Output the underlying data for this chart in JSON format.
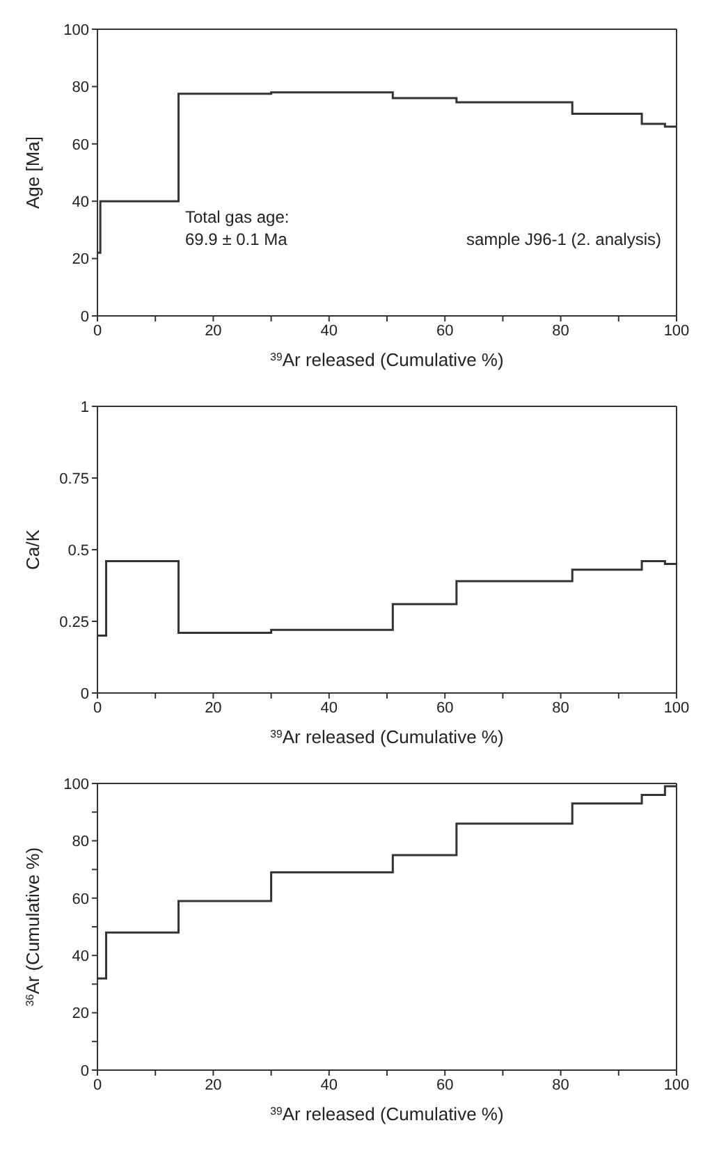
{
  "chart_data": [
    {
      "type": "step",
      "xlabel": "$^{39}$Ar released (Cumulative %)",
      "ylabel": "Age [Ma]",
      "x": [
        0,
        0.5,
        14,
        30,
        51,
        62,
        82,
        94,
        98,
        100
      ],
      "series": [
        {
          "color": "#333333",
          "values": [
            22,
            40,
            77.5,
            78,
            76,
            74.5,
            70.5,
            67,
            66,
            66
          ]
        }
      ],
      "xlim": [
        0,
        100
      ],
      "xticks": [
        0,
        {
          "value": 10,
          "label": null
        },
        20,
        {
          "value": 30,
          "label": null
        },
        40,
        {
          "value": 50,
          "label": null
        },
        60,
        {
          "value": 70,
          "label": null
        },
        80,
        {
          "value": 90,
          "label": null
        },
        100
      ],
      "ylim": [
        0,
        100
      ],
      "yticks": [
        0,
        20,
        40,
        60,
        80,
        100
      ],
      "annotations": [
        "Total gas age:\n69.9 ± 0.1 Ma",
        "sample J96-1 (2. analysis)"
      ]
    },
    {
      "type": "step",
      "xlabel": "$^{39}$Ar released (Cumulative %)",
      "ylabel": "Ca/K",
      "x": [
        0,
        1.5,
        14,
        30,
        51,
        62,
        82,
        94,
        98,
        100
      ],
      "series": [
        {
          "color": "#333333",
          "values": [
            0.2,
            0.46,
            0.21,
            0.22,
            0.31,
            0.39,
            0.43,
            0.46,
            0.45,
            0.45
          ]
        }
      ],
      "xlim": [
        0,
        100
      ],
      "xticks": [
        0,
        {
          "value": 10,
          "label": null
        },
        20,
        {
          "value": 30,
          "label": null
        },
        40,
        {
          "value": 50,
          "label": null
        },
        60,
        {
          "value": 70,
          "label": null
        },
        80,
        {
          "value": 90,
          "label": null
        },
        100
      ],
      "ylim": [
        0,
        1
      ],
      "yticks": [
        0,
        0.25,
        0.5,
        0.75,
        1
      ]
    },
    {
      "type": "step",
      "xlabel": "$^{39}$Ar released (Cumulative %)",
      "ylabel": "$^{36}$Ar (Cumulative %)",
      "x": [
        0,
        1.5,
        14,
        30,
        51,
        62,
        82,
        94,
        98,
        100
      ],
      "series": [
        {
          "color": "#333333",
          "values": [
            32,
            48,
            59,
            69,
            75,
            86,
            93,
            96,
            99,
            99
          ]
        }
      ],
      "xlim": [
        0,
        100
      ],
      "xticks": [
        0,
        {
          "value": 10,
          "label": null
        },
        20,
        {
          "value": 30,
          "label": null
        },
        40,
        {
          "value": 50,
          "label": null
        },
        60,
        {
          "value": 70,
          "label": null
        },
        80,
        {
          "value": 90,
          "label": null
        },
        100
      ],
      "ylim": [
        0,
        100
      ],
      "yticks": [
        0,
        {
          "value": 10,
          "label": null
        },
        20,
        {
          "value": 30,
          "label": null
        },
        40,
        {
          "value": 50,
          "label": null
        },
        60,
        {
          "value": 70,
          "label": null
        },
        80,
        {
          "value": 90,
          "label": null
        },
        100
      ]
    }
  ]
}
